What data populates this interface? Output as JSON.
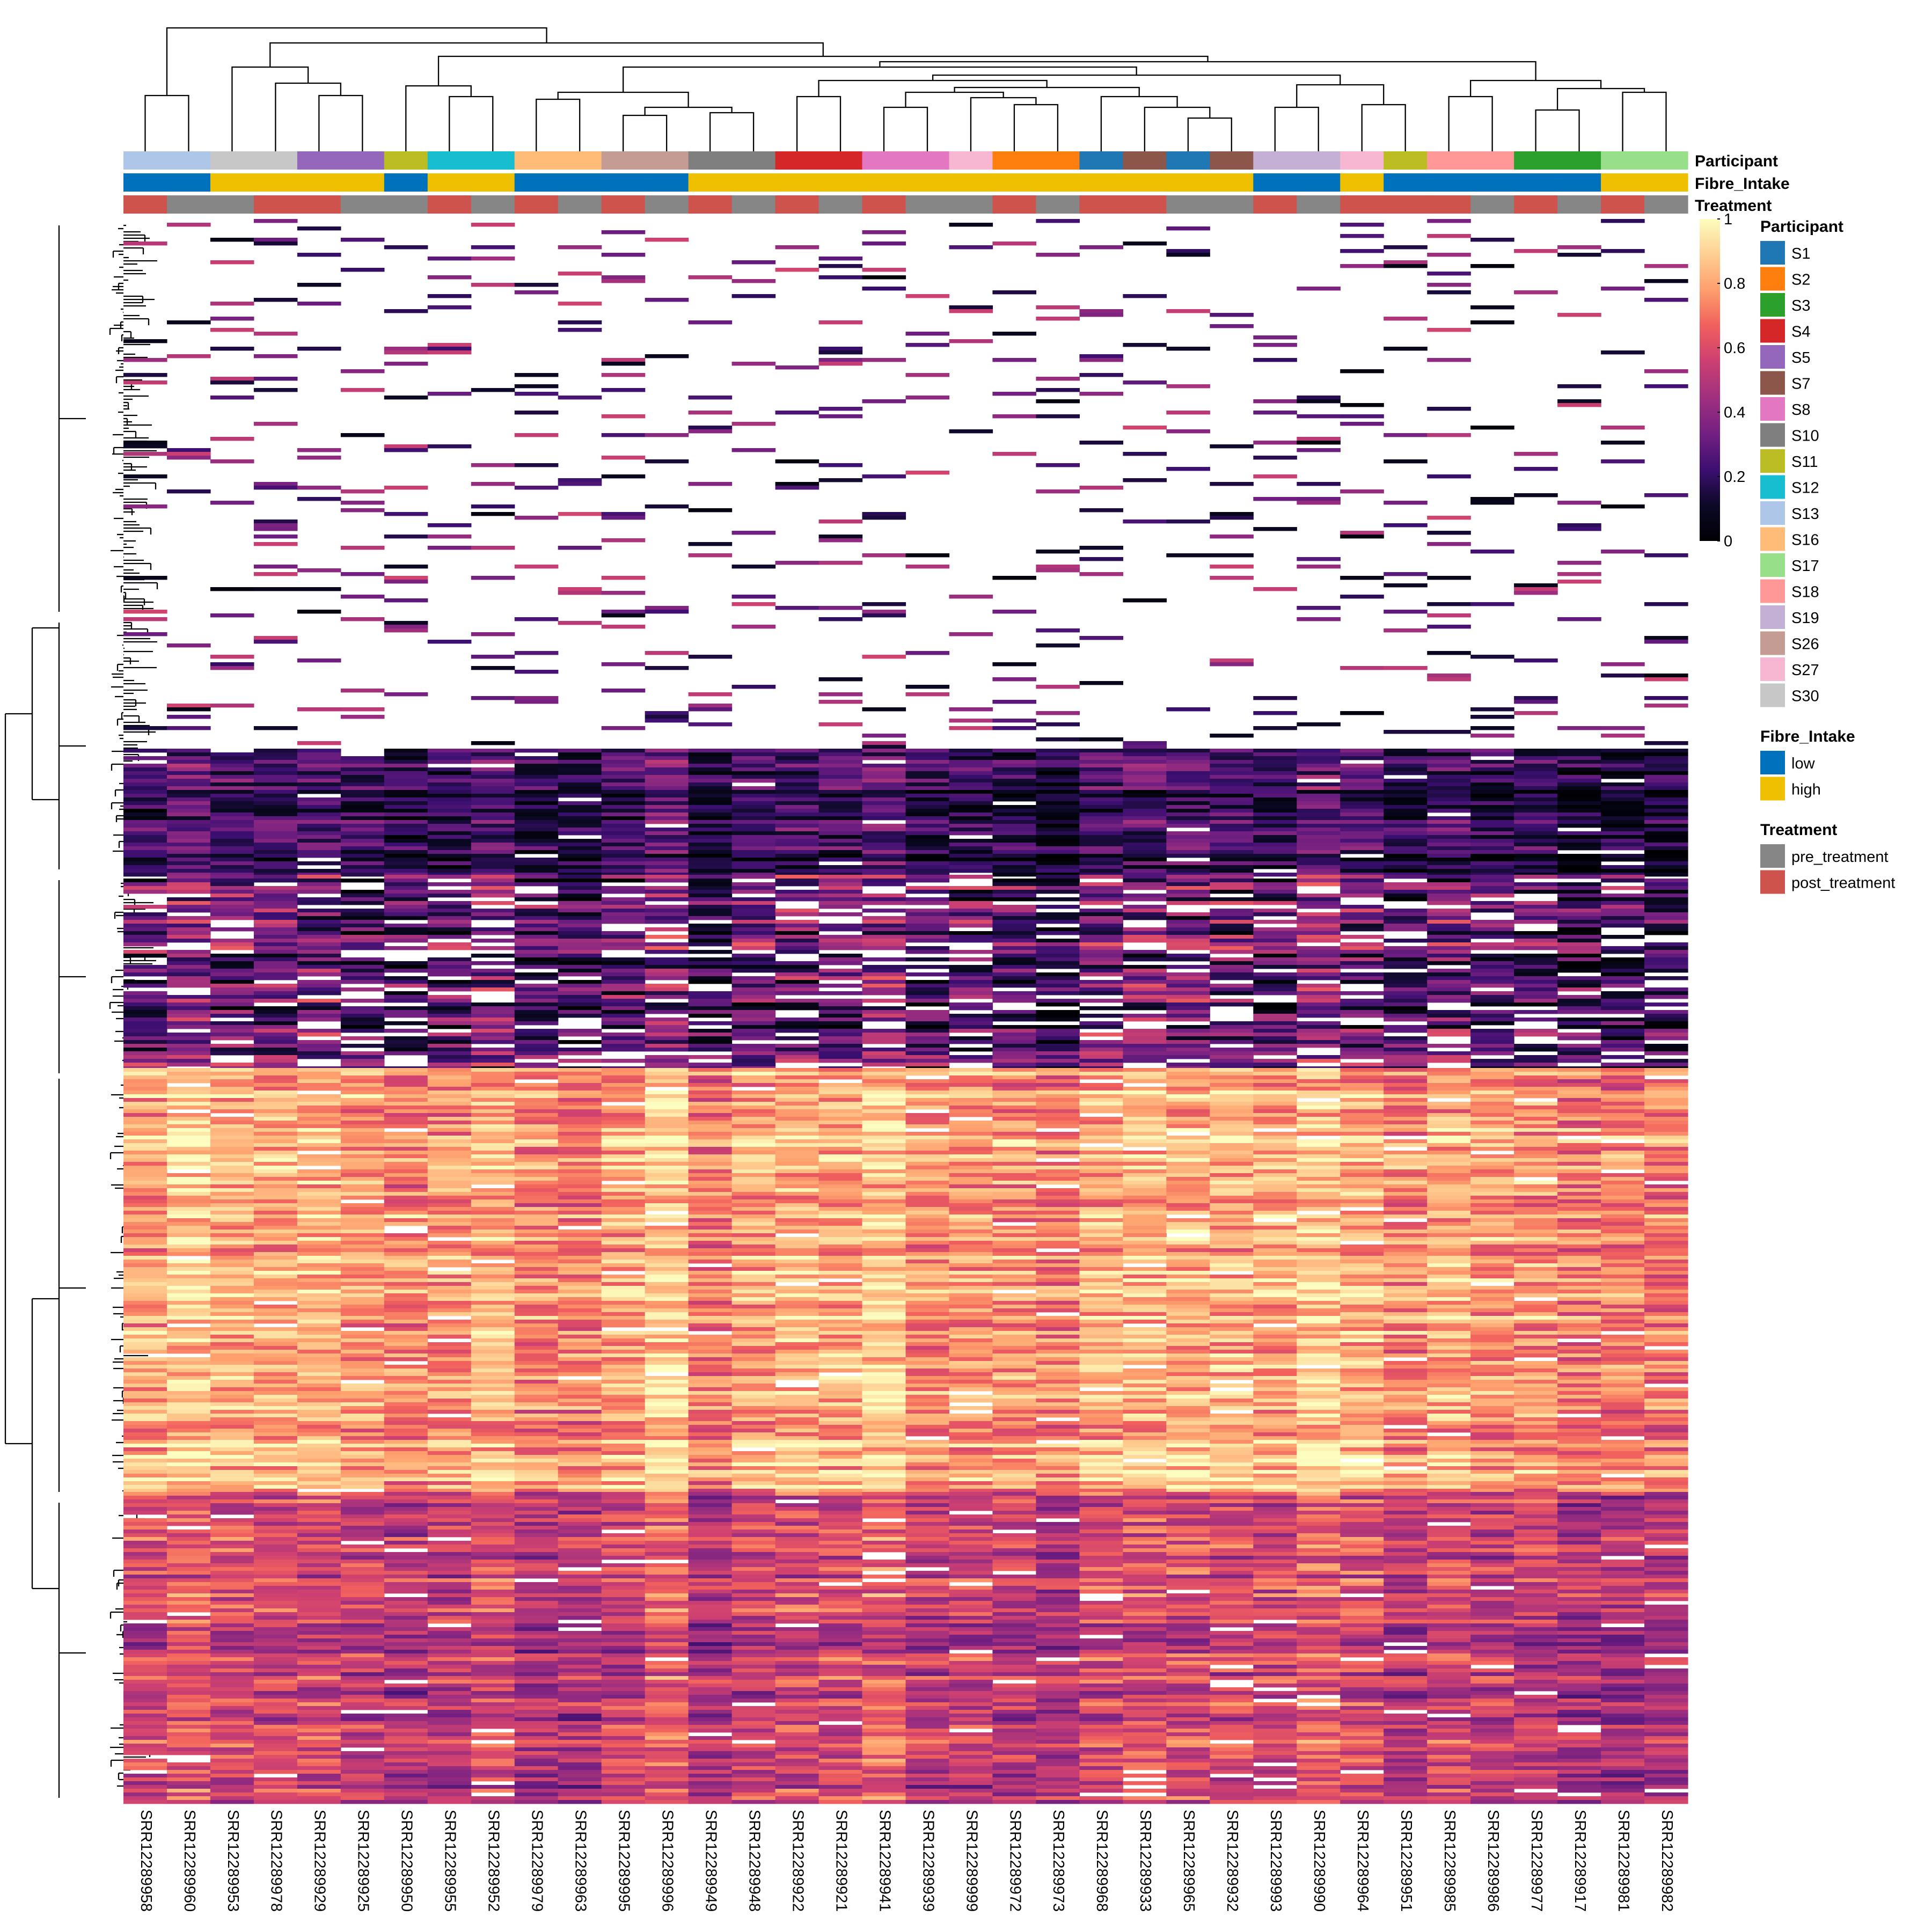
{
  "chart_data": {
    "type": "heatmap",
    "title": "",
    "xlabel": "",
    "ylabel": "",
    "value_range": [
      0,
      1
    ],
    "colorbar": {
      "ticks": [
        "1",
        "0.8",
        "0.6",
        "0.4",
        "0.2",
        "0"
      ],
      "scale": "magma",
      "colors": [
        "#fcfdbf",
        "#fecf92",
        "#fe9f6d",
        "#f1605d",
        "#cd4071",
        "#9e2f7f",
        "#721f81",
        "#3b0f70",
        "#0c0926",
        "#000004"
      ]
    },
    "samples": [
      "SRR12289958",
      "SRR12289960",
      "SRR12289953",
      "SRR12289978",
      "SRR12289929",
      "SRR12289925",
      "SRR12289950",
      "SRR12289955",
      "SRR12289952",
      "SRR12289979",
      "SRR12289963",
      "SRR12289995",
      "SRR12289996",
      "SRR12289949",
      "SRR12289948",
      "SRR12289922",
      "SRR12289921",
      "SRR12289941",
      "SRR12289939",
      "SRR12289999",
      "SRR12289972",
      "SRR12289973",
      "SRR12289968",
      "SRR12289933",
      "SRR12289965",
      "SRR12289932",
      "SRR12289993",
      "SRR12289990",
      "SRR12289964",
      "SRR12289951",
      "SRR12289985",
      "SRR12289986",
      "SRR12289977",
      "SRR12289917",
      "SRR12289981",
      "SRR12289982"
    ],
    "annotations": {
      "participant": [
        "S13",
        "S13",
        "S30",
        "S30",
        "S5",
        "S5",
        "S11",
        "S12",
        "S12",
        "S16",
        "S16",
        "S26",
        "S26",
        "S10",
        "S10",
        "S4",
        "S4",
        "S8",
        "S8",
        "S27",
        "S2",
        "S2",
        "S1",
        "S7",
        "S1",
        "S7",
        "S19",
        "S19",
        "S27",
        "S11",
        "S18",
        "S18",
        "S3",
        "S3",
        "S17",
        "S17"
      ],
      "fibre_intake": [
        "low",
        "low",
        "high",
        "high",
        "high",
        "high",
        "low",
        "high",
        "high",
        "low",
        "low",
        "low",
        "low",
        "high",
        "high",
        "high",
        "high",
        "high",
        "high",
        "high",
        "high",
        "high",
        "high",
        "high",
        "high",
        "high",
        "low",
        "low",
        "high",
        "low",
        "low",
        "low",
        "low",
        "low",
        "high",
        "high"
      ],
      "treatment": [
        "post_treatment",
        "pre_treatment",
        "pre_treatment",
        "post_treatment",
        "post_treatment",
        "pre_treatment",
        "pre_treatment",
        "post_treatment",
        "pre_treatment",
        "post_treatment",
        "pre_treatment",
        "post_treatment",
        "pre_treatment",
        "post_treatment",
        "pre_treatment",
        "post_treatment",
        "pre_treatment",
        "post_treatment",
        "pre_treatment",
        "pre_treatment",
        "post_treatment",
        "pre_treatment",
        "post_treatment",
        "post_treatment",
        "pre_treatment",
        "pre_treatment",
        "post_treatment",
        "pre_treatment",
        "post_treatment",
        "post_treatment",
        "post_treatment",
        "pre_treatment",
        "post_treatment",
        "pre_treatment",
        "post_treatment",
        "pre_treatment"
      ]
    },
    "row_blocks": [
      {
        "rows": "top",
        "pattern": "sparse",
        "typical_value": 0.3,
        "note": "mostly missing, scattered low values"
      },
      {
        "rows": "middle-upper",
        "pattern": "dense",
        "typical_value": 0.2
      },
      {
        "rows": "middle",
        "pattern": "mixed",
        "typical_value": 0.3
      },
      {
        "rows": "lower",
        "pattern": "dense",
        "typical_value": 0.8
      },
      {
        "rows": "bottom",
        "pattern": "dense",
        "typical_value": 0.55
      }
    ]
  },
  "annotation_titles": {
    "participant": "Participant",
    "fibre_intake": "Fibre_Intake",
    "treatment": "Treatment"
  },
  "legends": {
    "participant": {
      "title": "Participant",
      "entries": [
        {
          "label": "S1",
          "color": "#1f77b4"
        },
        {
          "label": "S2",
          "color": "#ff7f0e"
        },
        {
          "label": "S3",
          "color": "#2ca02c"
        },
        {
          "label": "S4",
          "color": "#d62728"
        },
        {
          "label": "S5",
          "color": "#9467bd"
        },
        {
          "label": "S7",
          "color": "#8c564b"
        },
        {
          "label": "S8",
          "color": "#e377c2"
        },
        {
          "label": "S10",
          "color": "#7f7f7f"
        },
        {
          "label": "S11",
          "color": "#bcbd22"
        },
        {
          "label": "S12",
          "color": "#17becf"
        },
        {
          "label": "S13",
          "color": "#aec7e8"
        },
        {
          "label": "S16",
          "color": "#ffbb78"
        },
        {
          "label": "S17",
          "color": "#98df8a"
        },
        {
          "label": "S18",
          "color": "#ff9896"
        },
        {
          "label": "S19",
          "color": "#c5b0d5"
        },
        {
          "label": "S26",
          "color": "#c49c94"
        },
        {
          "label": "S27",
          "color": "#f7b6d2"
        },
        {
          "label": "S30",
          "color": "#c7c7c7"
        }
      ]
    },
    "fibre_intake": {
      "title": "Fibre_Intake",
      "entries": [
        {
          "label": "low",
          "color": "#0072bd"
        },
        {
          "label": "high",
          "color": "#efc000"
        }
      ]
    },
    "treatment": {
      "title": "Treatment",
      "entries": [
        {
          "label": "pre_treatment",
          "color": "#868686"
        },
        {
          "label": "post_treatment",
          "color": "#cd534c"
        }
      ]
    }
  }
}
